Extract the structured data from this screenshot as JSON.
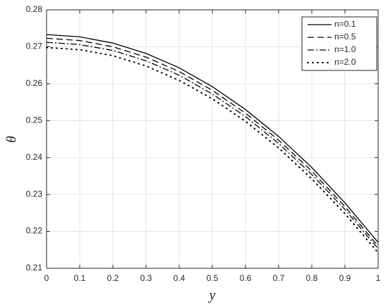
{
  "chart_data": {
    "type": "line",
    "xlabel": "y",
    "ylabel": "θ",
    "x": [
      0,
      0.1,
      0.2,
      0.3,
      0.4,
      0.5,
      0.6,
      0.7,
      0.8,
      0.9,
      1
    ],
    "series": [
      {
        "name": "n=0.1",
        "color": "#000000",
        "style": "solid",
        "values": [
          0.2733,
          0.2727,
          0.271,
          0.2682,
          0.2643,
          0.2592,
          0.253,
          0.2457,
          0.2373,
          0.2277,
          0.217
        ]
      },
      {
        "name": "n=0.5",
        "color": "#000000",
        "style": "dashed",
        "values": [
          0.2723,
          0.2717,
          0.27,
          0.2672,
          0.2633,
          0.2582,
          0.252,
          0.2447,
          0.2363,
          0.2267,
          0.216
        ]
      },
      {
        "name": "n=1.0",
        "color": "#000000",
        "style": "dashdot",
        "values": [
          0.2712,
          0.2706,
          0.269,
          0.2662,
          0.2623,
          0.2572,
          0.2511,
          0.2438,
          0.2354,
          0.2259,
          0.2153
        ]
      },
      {
        "name": "n=2.0",
        "color": "#000000",
        "style": "dotted",
        "values": [
          0.2698,
          0.2692,
          0.2676,
          0.2648,
          0.2609,
          0.2559,
          0.2498,
          0.2426,
          0.2342,
          0.2248,
          0.2142
        ]
      }
    ],
    "xlim": [
      0,
      1
    ],
    "xticks": [
      0,
      0.1,
      0.2,
      0.3,
      0.4,
      0.5,
      0.6,
      0.7,
      0.8,
      0.9,
      1
    ],
    "ylim": [
      0.21,
      0.28
    ],
    "yticks": [
      0.21,
      0.22,
      0.23,
      0.24,
      0.25,
      0.26,
      0.27,
      0.28
    ],
    "grid": true,
    "legend": "top-right"
  }
}
